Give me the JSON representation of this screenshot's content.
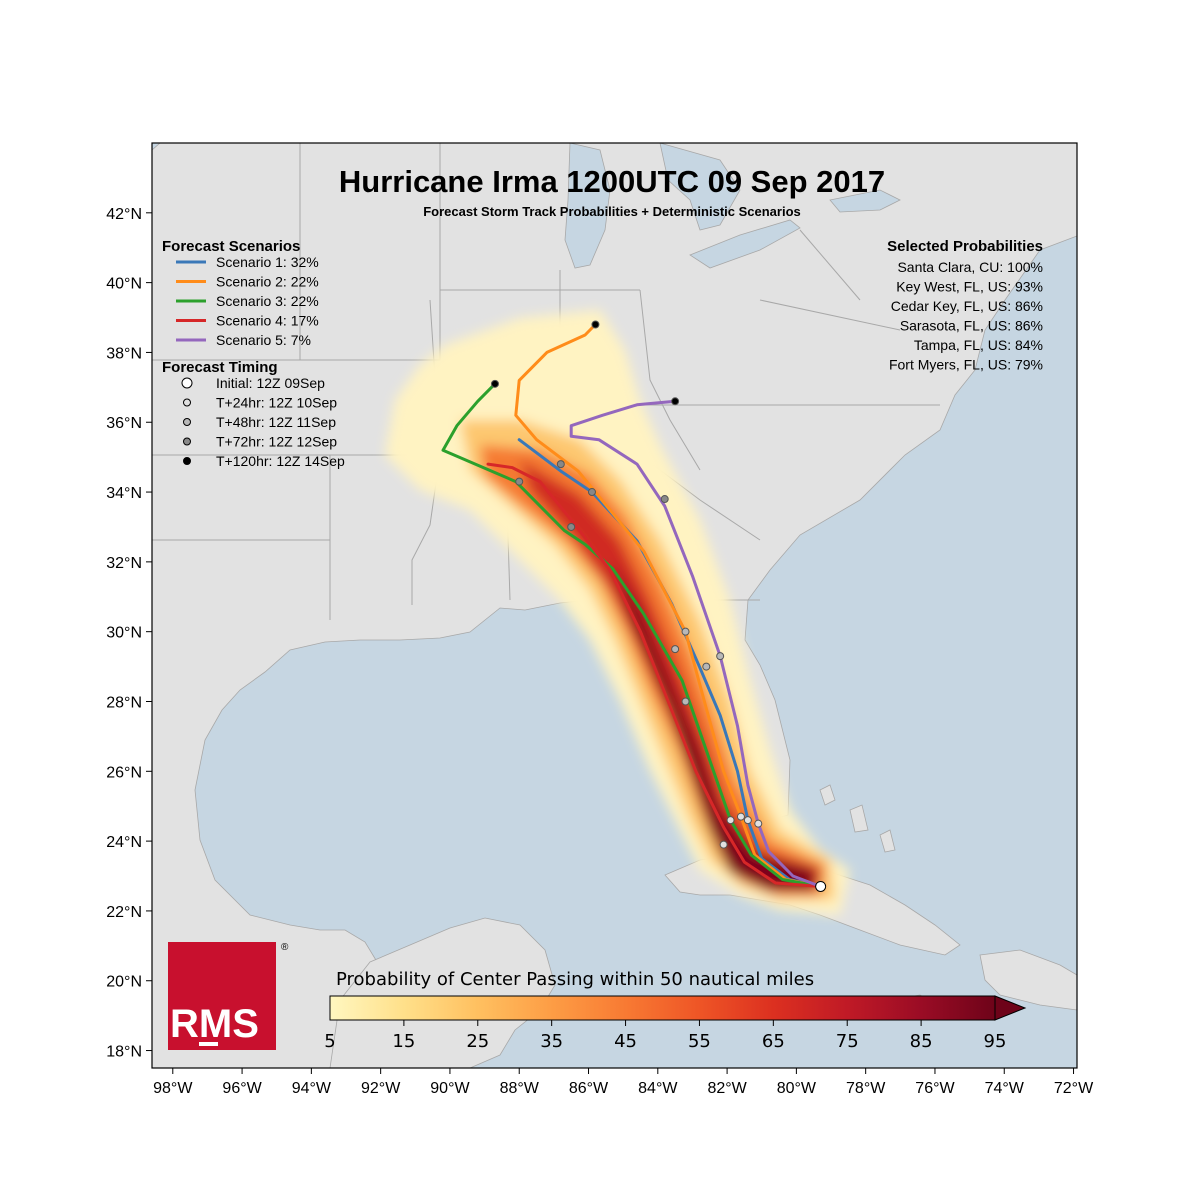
{
  "title": "Hurricane Irma 1200UTC 09 Sep 2017",
  "subtitle": "Forecast Storm Track Probabilities + Deterministic Scenarios",
  "axes": {
    "lat_labels": [
      "18°N",
      "20°N",
      "22°N",
      "24°N",
      "26°N",
      "28°N",
      "30°N",
      "32°N",
      "34°N",
      "36°N",
      "38°N",
      "40°N",
      "42°N"
    ],
    "lat_values": [
      18,
      20,
      22,
      24,
      26,
      28,
      30,
      32,
      34,
      36,
      38,
      40,
      42
    ],
    "lon_labels": [
      "98°W",
      "96°W",
      "94°W",
      "92°W",
      "90°W",
      "88°W",
      "86°W",
      "84°W",
      "82°W",
      "80°W",
      "78°W",
      "76°W",
      "74°W",
      "72°W"
    ],
    "lon_values": [
      -98,
      -96,
      -94,
      -92,
      -90,
      -88,
      -86,
      -84,
      -82,
      -80,
      -78,
      -76,
      -74,
      -72
    ],
    "lat_range": [
      17.5,
      44
    ],
    "lon_range": [
      -98.6,
      -71.9
    ]
  },
  "legend_scenarios": {
    "heading": "Forecast Scenarios",
    "items": [
      {
        "label": "Scenario 1: 32%",
        "color": "#3a78b8"
      },
      {
        "label": "Scenario 2: 22%",
        "color": "#ff8c1a"
      },
      {
        "label": "Scenario 3: 22%",
        "color": "#2ca02c"
      },
      {
        "label": "Scenario 4: 17%",
        "color": "#d62728"
      },
      {
        "label": "Scenario 5: 7%",
        "color": "#9467bd"
      }
    ]
  },
  "legend_timing": {
    "heading": "Forecast Timing",
    "items": [
      {
        "label": "Initial: 12Z 09Sep",
        "fill": "#ffffff",
        "r": 5
      },
      {
        "label": "T+24hr: 12Z 10Sep",
        "fill": "#e0e0e0",
        "r": 3.5
      },
      {
        "label": "T+48hr: 12Z 11Sep",
        "fill": "#b8b8b8",
        "r": 3.5
      },
      {
        "label": "T+72hr: 12Z 12Sep",
        "fill": "#888888",
        "r": 3.5
      },
      {
        "label": "T+120hr: 12Z 14Sep",
        "fill": "#000000",
        "r": 3.5
      }
    ]
  },
  "selected_probabilities": {
    "heading": "Selected Probabilities",
    "items": [
      "Santa Clara, CU: 100%",
      "Key West, FL, US: 93%",
      "Cedar Key, FL, US: 86%",
      "Sarasota, FL, US: 86%",
      "Tampa, FL, US: 84%",
      "Fort Myers, FL, US: 79%"
    ]
  },
  "colorbar": {
    "title": "Probability of Center Passing within 50 nautical miles",
    "ticks": [
      "5",
      "15",
      "25",
      "35",
      "45",
      "55",
      "65",
      "75",
      "85",
      "95"
    ],
    "tick_values": [
      5,
      15,
      25,
      35,
      45,
      55,
      65,
      75,
      85,
      95
    ],
    "colors": [
      "#fff7c0",
      "#ffe08a",
      "#ffc060",
      "#fd9d45",
      "#f87a33",
      "#ee5526",
      "#dc3020",
      "#c01a26",
      "#9a0c25",
      "#6e0319"
    ]
  },
  "logo": {
    "text": "RMS",
    "mark": "®",
    "color": "#c8102e"
  },
  "colors": {
    "ocean": "#c6d6e2",
    "land": "#e2e2e2",
    "border": "#a8a8a8"
  },
  "tracks": [
    {
      "name": "Scenario 1",
      "color": "#3a78b8",
      "points": [
        [
          -79.3,
          22.7
        ],
        [
          -80.2,
          22.9
        ],
        [
          -81.0,
          23.5
        ],
        [
          -81.4,
          24.6
        ],
        [
          -81.7,
          26.0
        ],
        [
          -82.2,
          27.6
        ],
        [
          -82.8,
          29.0
        ],
        [
          -83.6,
          30.8
        ],
        [
          -84.6,
          32.6
        ],
        [
          -85.9,
          34.0
        ],
        [
          -86.8,
          34.6
        ],
        [
          -88.0,
          35.5
        ]
      ],
      "markers": [
        [
          -79.3,
          22.7,
          0
        ],
        [
          -81.4,
          24.6,
          1
        ],
        [
          -82.6,
          29.0,
          2
        ],
        [
          -85.9,
          34.0,
          3
        ]
      ]
    },
    {
      "name": "Scenario 2",
      "color": "#ff8c1a",
      "points": [
        [
          -79.3,
          22.7
        ],
        [
          -80.3,
          22.9
        ],
        [
          -81.2,
          23.6
        ],
        [
          -81.6,
          24.7
        ],
        [
          -82.1,
          26.0
        ],
        [
          -82.6,
          27.8
        ],
        [
          -83.2,
          30.0
        ],
        [
          -84.4,
          32.3
        ],
        [
          -86.3,
          34.6
        ],
        [
          -87.5,
          35.5
        ],
        [
          -88.1,
          36.2
        ],
        [
          -88.0,
          37.2
        ],
        [
          -87.2,
          38.0
        ],
        [
          -86.1,
          38.5
        ],
        [
          -85.8,
          38.8
        ]
      ],
      "markers": [
        [
          -81.6,
          24.7,
          1
        ],
        [
          -83.2,
          30.0,
          2
        ],
        [
          -86.8,
          34.8,
          3
        ],
        [
          -85.8,
          38.8,
          4
        ]
      ]
    },
    {
      "name": "Scenario 3",
      "color": "#2ca02c",
      "points": [
        [
          -79.3,
          22.7
        ],
        [
          -80.4,
          22.9
        ],
        [
          -81.3,
          23.6
        ],
        [
          -81.9,
          24.6
        ],
        [
          -82.6,
          26.6
        ],
        [
          -83.3,
          28.6
        ],
        [
          -84.4,
          30.5
        ],
        [
          -85.3,
          31.8
        ],
        [
          -86.1,
          32.5
        ],
        [
          -86.7,
          32.9
        ],
        [
          -88.1,
          34.3
        ],
        [
          -90.2,
          35.2
        ],
        [
          -89.8,
          35.9
        ],
        [
          -89.2,
          36.6
        ],
        [
          -88.7,
          37.1
        ]
      ],
      "markers": [
        [
          -81.9,
          24.6,
          1
        ],
        [
          -83.5,
          29.5,
          2
        ],
        [
          -88.0,
          34.3,
          3
        ],
        [
          -88.7,
          37.1,
          4
        ]
      ]
    },
    {
      "name": "Scenario 4",
      "color": "#d62728",
      "points": [
        [
          -79.3,
          22.7
        ],
        [
          -80.6,
          22.8
        ],
        [
          -81.5,
          23.4
        ],
        [
          -82.1,
          24.4
        ],
        [
          -82.9,
          26.0
        ],
        [
          -83.7,
          28.0
        ],
        [
          -84.5,
          30.0
        ],
        [
          -85.4,
          31.8
        ],
        [
          -86.5,
          33.2
        ],
        [
          -87.4,
          34.3
        ],
        [
          -88.2,
          34.7
        ],
        [
          -88.9,
          34.8
        ]
      ],
      "markers": [
        [
          -82.1,
          23.9,
          1
        ],
        [
          -83.2,
          28.0,
          2
        ],
        [
          -86.5,
          33.0,
          3
        ]
      ]
    },
    {
      "name": "Scenario 5",
      "color": "#9467bd",
      "points": [
        [
          -79.3,
          22.7
        ],
        [
          -80.1,
          23.0
        ],
        [
          -80.8,
          23.7
        ],
        [
          -81.1,
          24.5
        ],
        [
          -81.4,
          25.6
        ],
        [
          -81.7,
          27.3
        ],
        [
          -82.2,
          29.3
        ],
        [
          -83.0,
          31.6
        ],
        [
          -83.8,
          33.6
        ],
        [
          -84.6,
          34.8
        ],
        [
          -85.7,
          35.5
        ],
        [
          -86.5,
          35.6
        ],
        [
          -86.5,
          35.9
        ],
        [
          -85.6,
          36.2
        ],
        [
          -84.6,
          36.5
        ],
        [
          -83.5,
          36.6
        ]
      ],
      "markers": [
        [
          -81.1,
          24.5,
          1
        ],
        [
          -82.2,
          29.3,
          2
        ],
        [
          -83.8,
          33.8,
          3
        ],
        [
          -83.5,
          36.6,
          4
        ]
      ]
    }
  ]
}
